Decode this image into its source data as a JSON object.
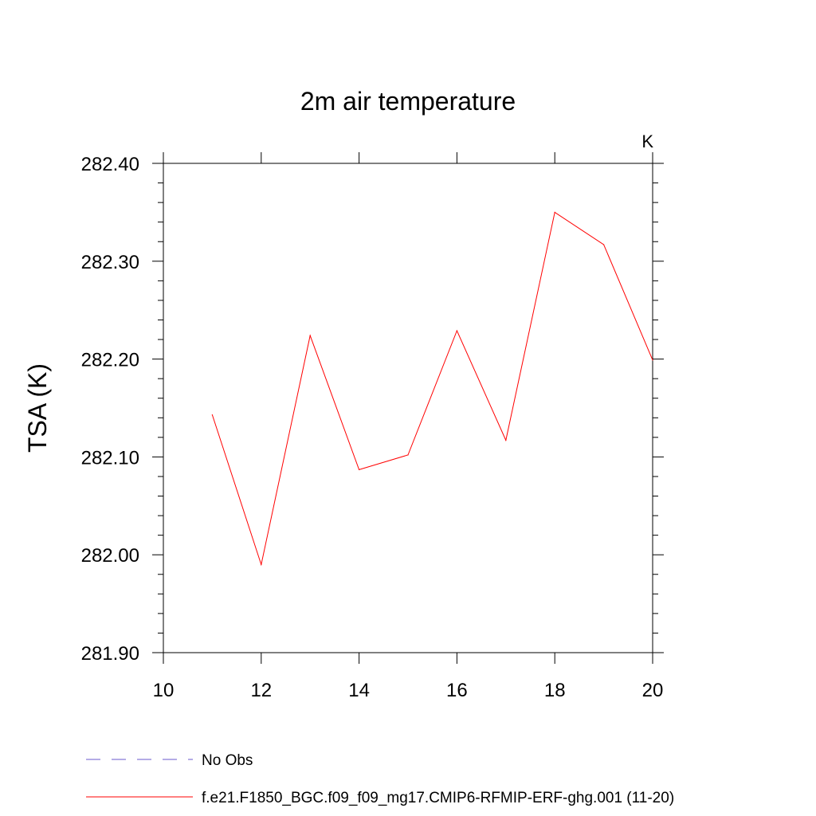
{
  "chart_data": {
    "type": "line",
    "title": "2m air temperature",
    "units_label": "K",
    "xlabel": "",
    "ylabel": "TSA  (K)",
    "xlim": [
      10,
      20
    ],
    "ylim": [
      281.9,
      282.4
    ],
    "x_ticks": [
      "10",
      "12",
      "14",
      "16",
      "18",
      "20"
    ],
    "y_ticks": [
      "281.90",
      "282.00",
      "282.10",
      "282.20",
      "282.30",
      "282.40"
    ],
    "series": [
      {
        "name": "f.e21.F1850_BGC.f09_f09_mg17.CMIP6-RFMIP-ERF-ghg.001 (11-20)",
        "color": "#ff0000",
        "x": [
          11,
          12,
          13,
          14,
          15,
          16,
          17,
          18,
          19,
          20
        ],
        "y": [
          282.143,
          281.99,
          282.224,
          282.087,
          282.102,
          282.229,
          282.117,
          282.35,
          282.317,
          282.199
        ]
      }
    ],
    "legend": {
      "placement": "bottom",
      "entries": [
        {
          "label": "No Obs",
          "color": "#6a5acd",
          "style": "dashed"
        },
        {
          "label": "f.e21.F1850_BGC.f09_f09_mg17.CMIP6-RFMIP-ERF-ghg.001 (11-20)",
          "color": "#ff0000",
          "style": "solid"
        }
      ]
    }
  }
}
